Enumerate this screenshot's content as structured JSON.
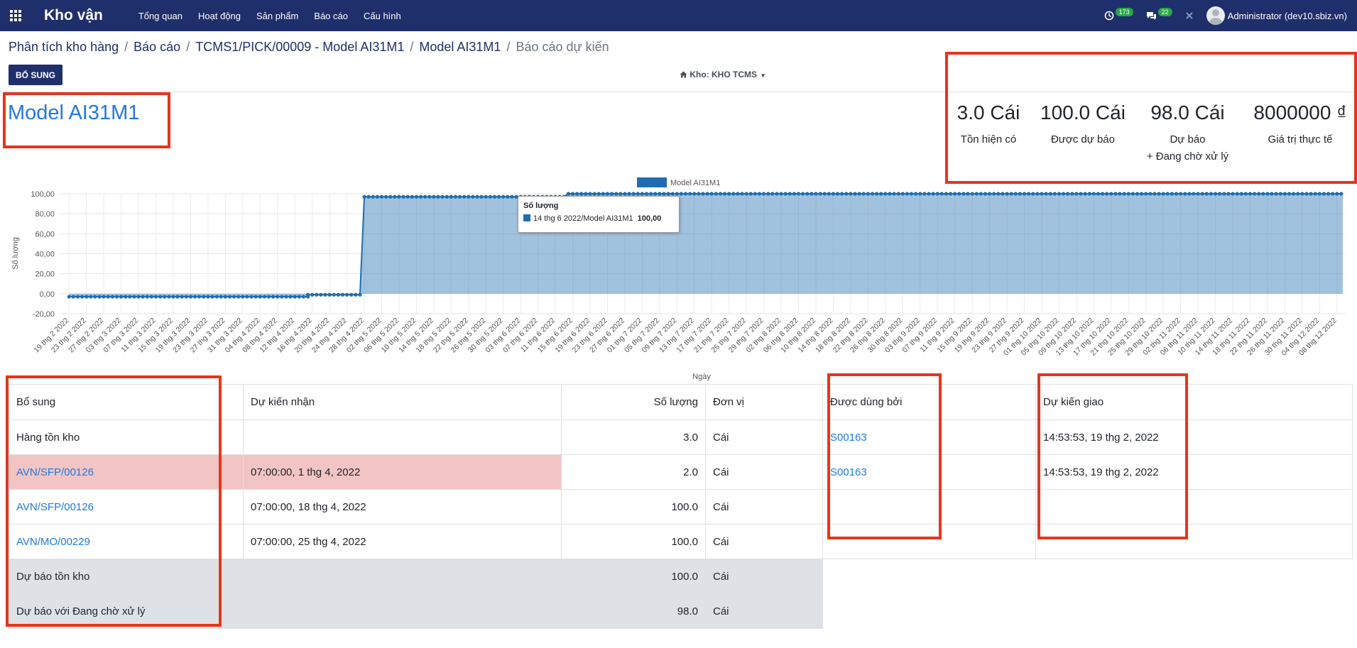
{
  "navbar": {
    "brand": "Kho vận",
    "menu": [
      "Tổng quan",
      "Hoạt động",
      "Sản phẩm",
      "Báo cáo",
      "Cấu hình"
    ],
    "activity_count": "173",
    "message_count": "22",
    "user": "Administrator (dev10.sbiz.vn)"
  },
  "breadcrumb": [
    "Phân tích kho hàng",
    "Báo cáo",
    "TCMS1/PICK/00009 - Model AI31M1",
    "Model AI31M1",
    "Báo cáo dự kiến"
  ],
  "buttons": {
    "replenish": "BỔ SUNG"
  },
  "warehouse": {
    "label": "Kho: KHO TCMS"
  },
  "product": {
    "title": "Model AI31M1"
  },
  "kpis": [
    {
      "value": "3.0 Cái",
      "label": "Tồn hiện có",
      "label2": ""
    },
    {
      "value": "100.0 Cái",
      "label": "Được dự báo",
      "label2": ""
    },
    {
      "value": "98.0 Cái",
      "label": "Dự báo",
      "label2": "+ Đang chờ xử lý"
    },
    {
      "value": "8000000 ₫",
      "label": "Giá trị thực tế",
      "label2": ""
    }
  ],
  "tooltip": {
    "title": "Số lượng",
    "label": "14 thg 6 2022/Model AI31M1",
    "value": "100,00"
  },
  "chart_data": {
    "type": "area",
    "xlabel": "Ngày",
    "ylabel": "Số lượng",
    "ylim": [
      -20,
      100
    ],
    "yticks": [
      "-20,00",
      "0,00",
      "20,00",
      "40,00",
      "60,00",
      "80,00",
      "100,00"
    ],
    "legend_position": "top",
    "series": [
      {
        "name": "Model AI31M1",
        "color": "#1f6db0",
        "segments": [
          {
            "from": "19 thg 2 2022",
            "to": "15 thg 4 2022",
            "value": -3
          },
          {
            "from": "15 thg 4 2022",
            "to": "27 thg 4 2022",
            "value": -1
          },
          {
            "from": "28 thg 4 2022",
            "to": "13 thg 6 2022",
            "value": 97
          },
          {
            "from": "14 thg 6 2022",
            "to": "08 thg 12 2022",
            "value": 100
          }
        ]
      }
    ],
    "x_tick_labels": [
      "19 thg 2 2022",
      "23 thg 2 2022",
      "27 thg 2 2022",
      "03 thg 3 2022",
      "07 thg 3 2022",
      "11 thg 3 2022",
      "15 thg 3 2022",
      "19 thg 3 2022",
      "23 thg 3 2022",
      "27 thg 3 2022",
      "31 thg 3 2022",
      "04 thg 4 2022",
      "08 thg 4 2022",
      "12 thg 4 2022",
      "16 thg 4 2022",
      "20 thg 4 2022",
      "24 thg 4 2022",
      "28 thg 4 2022",
      "02 thg 5 2022",
      "06 thg 5 2022",
      "10 thg 5 2022",
      "14 thg 5 2022",
      "18 thg 5 2022",
      "22 thg 5 2022",
      "26 thg 5 2022",
      "30 thg 5 2022",
      "03 thg 6 2022",
      "07 thg 6 2022",
      "11 thg 6 2022",
      "15 thg 6 2022",
      "19 thg 6 2022",
      "23 thg 6 2022",
      "27 thg 6 2022",
      "01 thg 7 2022",
      "05 thg 7 2022",
      "09 thg 7 2022",
      "13 thg 7 2022",
      "17 thg 7 2022",
      "21 thg 7 2022",
      "25 thg 7 2022",
      "29 thg 7 2022",
      "02 thg 8 2022",
      "06 thg 8 2022",
      "10 thg 8 2022",
      "14 thg 8 2022",
      "18 thg 8 2022",
      "22 thg 8 2022",
      "26 thg 8 2022",
      "30 thg 8 2022",
      "03 thg 9 2022",
      "07 thg 9 2022",
      "11 thg 9 2022",
      "15 thg 9 2022",
      "19 thg 9 2022",
      "23 thg 9 2022",
      "27 thg 9 2022",
      "01 thg 10 2022",
      "05 thg 10 2022",
      "09 thg 10 2022",
      "13 thg 10 2022",
      "17 thg 10 2022",
      "21 thg 10 2022",
      "25 thg 10 2022",
      "29 thg 10 2022",
      "02 thg 11 2022",
      "06 thg 11 2022",
      "10 thg 11 2022",
      "14 thg 11 2022",
      "18 thg 11 2022",
      "22 thg 11 2022",
      "26 thg 11 2022",
      "30 thg 11 2022",
      "04 thg 12 2022",
      "08 thg 12 2022"
    ]
  },
  "table": {
    "headers": [
      "Bổ sung",
      "Dự kiến nhận",
      "Số lượng",
      "Đơn vị",
      "Được dùng bởi",
      "Dự kiến giao"
    ],
    "rows": [
      {
        "source": "Hàng tồn kho",
        "receipt": "",
        "qty": "3.0",
        "uom": "Cái",
        "used_by": "S00163",
        "delivery": "14:53:53, 19 thg 2, 2022"
      },
      {
        "source": "AVN/SFP/00126",
        "receipt": "07:00:00, 1 thg 4, 2022",
        "qty": "2.0",
        "uom": "Cái",
        "used_by": "S00163",
        "delivery": "14:53:53, 19 thg 2, 2022"
      },
      {
        "source": "AVN/SFP/00126",
        "receipt": "07:00:00, 18 thg 4, 2022",
        "qty": "100.0",
        "uom": "Cái",
        "used_by": "",
        "delivery": ""
      },
      {
        "source": "AVN/MO/00229",
        "receipt": "07:00:00, 25 thg 4, 2022",
        "qty": "100.0",
        "uom": "Cái",
        "used_by": "",
        "delivery": ""
      }
    ],
    "summary": [
      {
        "label": "Dự báo tồn kho",
        "qty": "100.0",
        "uom": "Cái"
      },
      {
        "label": "Dự báo với Đang chờ xử lý",
        "qty": "98.0",
        "uom": "Cái"
      }
    ]
  }
}
